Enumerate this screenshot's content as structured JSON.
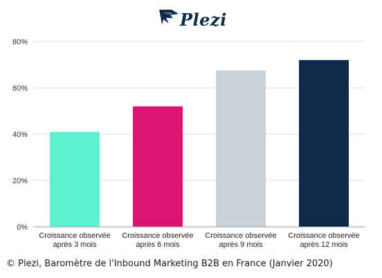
{
  "brand": {
    "name": "Plezi",
    "color": "#0d2a4a"
  },
  "chart_data": {
    "type": "bar",
    "categories": [
      [
        "Croissance observée",
        "après 3 mois"
      ],
      [
        "Croissance observée",
        "après 6 mois"
      ],
      [
        "Croissance observée",
        "après 9 mois"
      ],
      [
        "Croissance observée",
        "après 12 mois"
      ]
    ],
    "values": [
      41,
      52,
      67.5,
      72
    ],
    "colors": [
      "#5ef2d3",
      "#dc1470",
      "#c8d3db",
      "#0d2a4a"
    ],
    "ylim": [
      0,
      80
    ],
    "yticks": [
      "0%",
      "20%",
      "40%",
      "60%",
      "80%"
    ],
    "ytick_values": [
      0,
      20,
      40,
      60,
      80
    ],
    "grid": true,
    "legend": "none"
  },
  "caption": "© Plezi, Baromètre de l'Inbound Marketing B2B en France (Janvier 2020)"
}
